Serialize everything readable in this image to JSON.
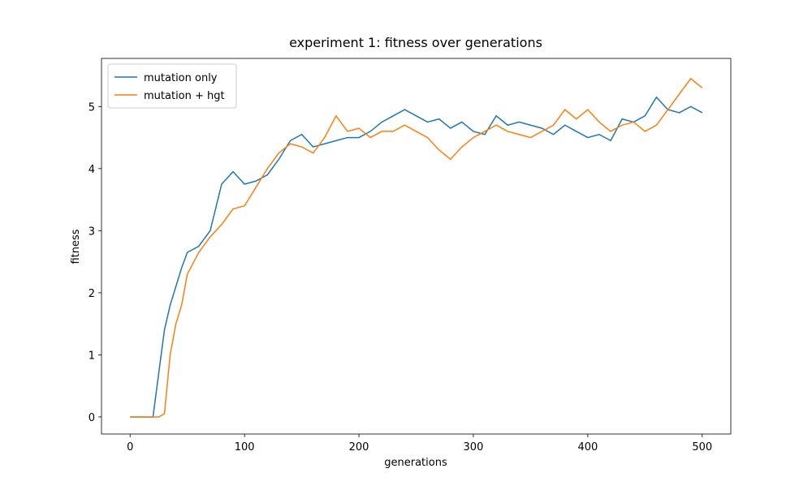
{
  "chart_data": {
    "type": "line",
    "title": "experiment 1: fitness over generations",
    "x_label": "generations",
    "y_label": "fitness",
    "x": [
      0,
      10,
      20,
      25,
      30,
      35,
      40,
      45,
      50,
      60,
      70,
      80,
      90,
      100,
      110,
      120,
      130,
      140,
      150,
      160,
      170,
      180,
      190,
      200,
      210,
      220,
      230,
      240,
      250,
      260,
      270,
      280,
      290,
      300,
      310,
      320,
      330,
      340,
      350,
      360,
      370,
      380,
      390,
      400,
      410,
      420,
      430,
      440,
      450,
      460,
      470,
      480,
      490,
      500
    ],
    "series": [
      {
        "name": "mutation only",
        "color": "#1f77b4",
        "values": [
          0,
          0,
          0,
          0.7,
          1.4,
          1.8,
          2.1,
          2.4,
          2.65,
          2.75,
          3.0,
          3.75,
          3.95,
          3.75,
          3.8,
          3.9,
          4.15,
          4.45,
          4.55,
          4.35,
          4.4,
          4.45,
          4.5,
          4.5,
          4.6,
          4.75,
          4.85,
          4.95,
          4.85,
          4.75,
          4.8,
          4.65,
          4.75,
          4.6,
          4.55,
          4.85,
          4.7,
          4.75,
          4.7,
          4.65,
          4.55,
          4.7,
          4.6,
          4.5,
          4.55,
          4.45,
          4.8,
          4.75,
          4.85,
          5.15,
          4.95,
          4.9,
          5.0,
          4.9
        ]
      },
      {
        "name": "mutation + hgt",
        "color": "#ff7f0e",
        "values": [
          0,
          0,
          0,
          0,
          0.05,
          1.0,
          1.5,
          1.8,
          2.3,
          2.65,
          2.9,
          3.1,
          3.35,
          3.4,
          3.7,
          4.0,
          4.25,
          4.4,
          4.35,
          4.25,
          4.5,
          4.85,
          4.6,
          4.65,
          4.5,
          4.6,
          4.6,
          4.7,
          4.6,
          4.5,
          4.3,
          4.15,
          4.35,
          4.5,
          4.6,
          4.7,
          4.6,
          4.55,
          4.5,
          4.6,
          4.7,
          4.95,
          4.8,
          4.95,
          4.75,
          4.6,
          4.7,
          4.75,
          4.6,
          4.7,
          4.95,
          5.2,
          5.45,
          5.3
        ]
      }
    ],
    "xlim": [
      -25,
      525
    ],
    "ylim": [
      -0.275,
      5.775
    ],
    "xticks": [
      0,
      100,
      200,
      300,
      400,
      500
    ],
    "yticks": [
      0,
      1,
      2,
      3,
      4,
      5
    ],
    "grid": false,
    "legend": "upper left"
  }
}
